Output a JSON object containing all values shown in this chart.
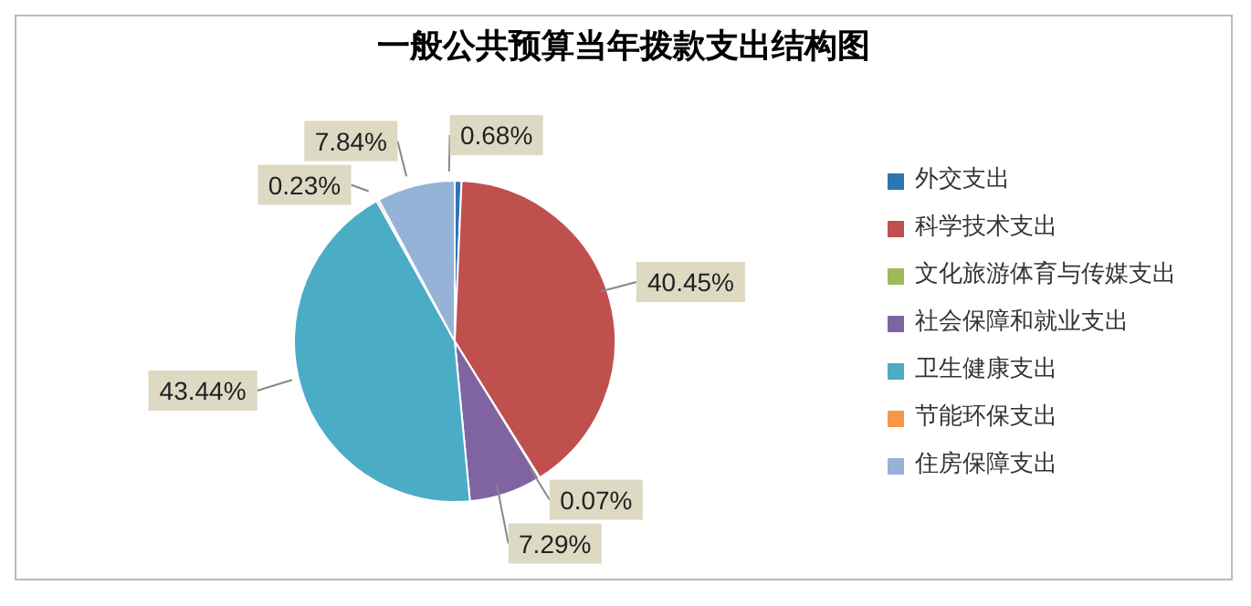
{
  "chart_data": {
    "type": "pie",
    "title": "一般公共预算当年拨款支出结构图",
    "categories": [
      "外交支出",
      "科学技术支出",
      "文化旅游体育与传媒支出",
      "社会保障和就业支出",
      "卫生健康支出",
      "节能环保支出",
      "住房保障支出"
    ],
    "values": [
      0.68,
      40.45,
      0.07,
      7.29,
      43.44,
      0.23,
      7.84
    ],
    "value_labels": [
      "0.68%",
      "40.45%",
      "0.07%",
      "7.29%",
      "43.44%",
      "0.23%",
      "7.84%"
    ],
    "colors": [
      "#2e75b6",
      "#c0504d",
      "#9bbb59",
      "#8064a2",
      "#4bacc6",
      "#f79646",
      "#95b3d7"
    ],
    "legend": "right"
  }
}
